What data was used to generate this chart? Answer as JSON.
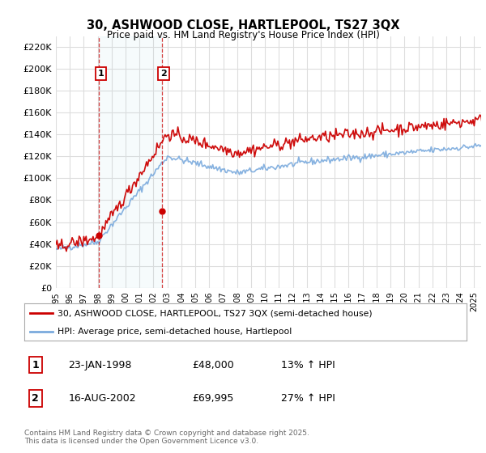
{
  "title": "30, ASHWOOD CLOSE, HARTLEPOOL, TS27 3QX",
  "subtitle": "Price paid vs. HM Land Registry's House Price Index (HPI)",
  "bg_color": "#ffffff",
  "grid_color": "#dddddd",
  "sale1_date": "23-JAN-1998",
  "sale1_price": 48000,
  "sale1_hpi": "13% ↑ HPI",
  "sale2_date": "16-AUG-2002",
  "sale2_price": 69995,
  "sale2_hpi": "27% ↑ HPI",
  "legend_line1": "30, ASHWOOD CLOSE, HARTLEPOOL, TS27 3QX (semi-detached house)",
  "legend_line2": "HPI: Average price, semi-detached house, Hartlepool",
  "footer": "Contains HM Land Registry data © Crown copyright and database right 2025.\nThis data is licensed under the Open Government Licence v3.0.",
  "line_color_red": "#cc0000",
  "line_color_blue": "#7aaadd",
  "sale_marker_color": "#cc0000",
  "yticks": [
    0,
    20000,
    40000,
    60000,
    80000,
    100000,
    120000,
    140000,
    160000,
    180000,
    200000,
    220000
  ],
  "ytick_labels": [
    "£0",
    "£20K",
    "£40K",
    "£60K",
    "£80K",
    "£100K",
    "£120K",
    "£140K",
    "£160K",
    "£180K",
    "£200K",
    "£220K"
  ]
}
